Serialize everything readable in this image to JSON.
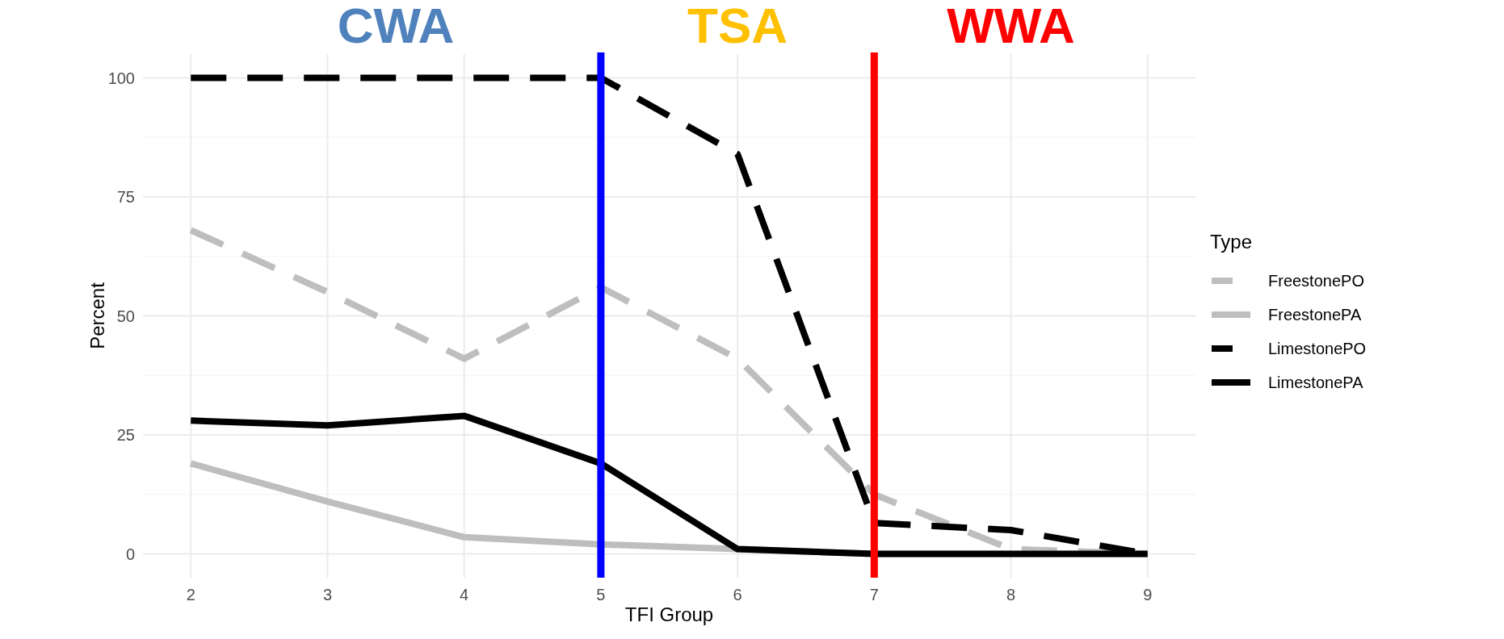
{
  "chart_data": {
    "type": "line",
    "xlabel": "TFI Group",
    "ylabel": "Percent",
    "legend_title": "Type",
    "legend": "right",
    "grid": true,
    "x": [
      2,
      3,
      4,
      5,
      6,
      7,
      8,
      9
    ],
    "xlim": [
      1.65,
      9.35
    ],
    "xticks": [
      2,
      3,
      4,
      5,
      6,
      7,
      8,
      9
    ],
    "ylim": [
      -5,
      105
    ],
    "yticks": [
      0,
      25,
      50,
      75,
      100
    ],
    "series": [
      {
        "name": "FreestonePO",
        "color": "#bebebe",
        "line_style": "dashed",
        "values": [
          68,
          55,
          41,
          56,
          41,
          12.5,
          1,
          0
        ]
      },
      {
        "name": "FreestonePA",
        "color": "#bebebe",
        "line_style": "solid",
        "values": [
          19,
          11,
          3.5,
          2,
          1,
          0,
          0,
          0
        ]
      },
      {
        "name": "LimestonePO",
        "color": "#000000",
        "line_style": "dashed",
        "values": [
          100,
          100,
          100,
          100,
          84,
          6.5,
          5,
          0
        ]
      },
      {
        "name": "LimestonePA",
        "color": "#000000",
        "line_style": "solid",
        "values": [
          28,
          27,
          29,
          19,
          1,
          0,
          0,
          0
        ]
      }
    ],
    "ref_lines": [
      {
        "axis": "x",
        "value": 5,
        "color": "#0000ff"
      },
      {
        "axis": "x",
        "value": 7,
        "color": "#ff0000"
      }
    ],
    "annotations": [
      "CWA",
      "TSA",
      "WWA"
    ]
  }
}
